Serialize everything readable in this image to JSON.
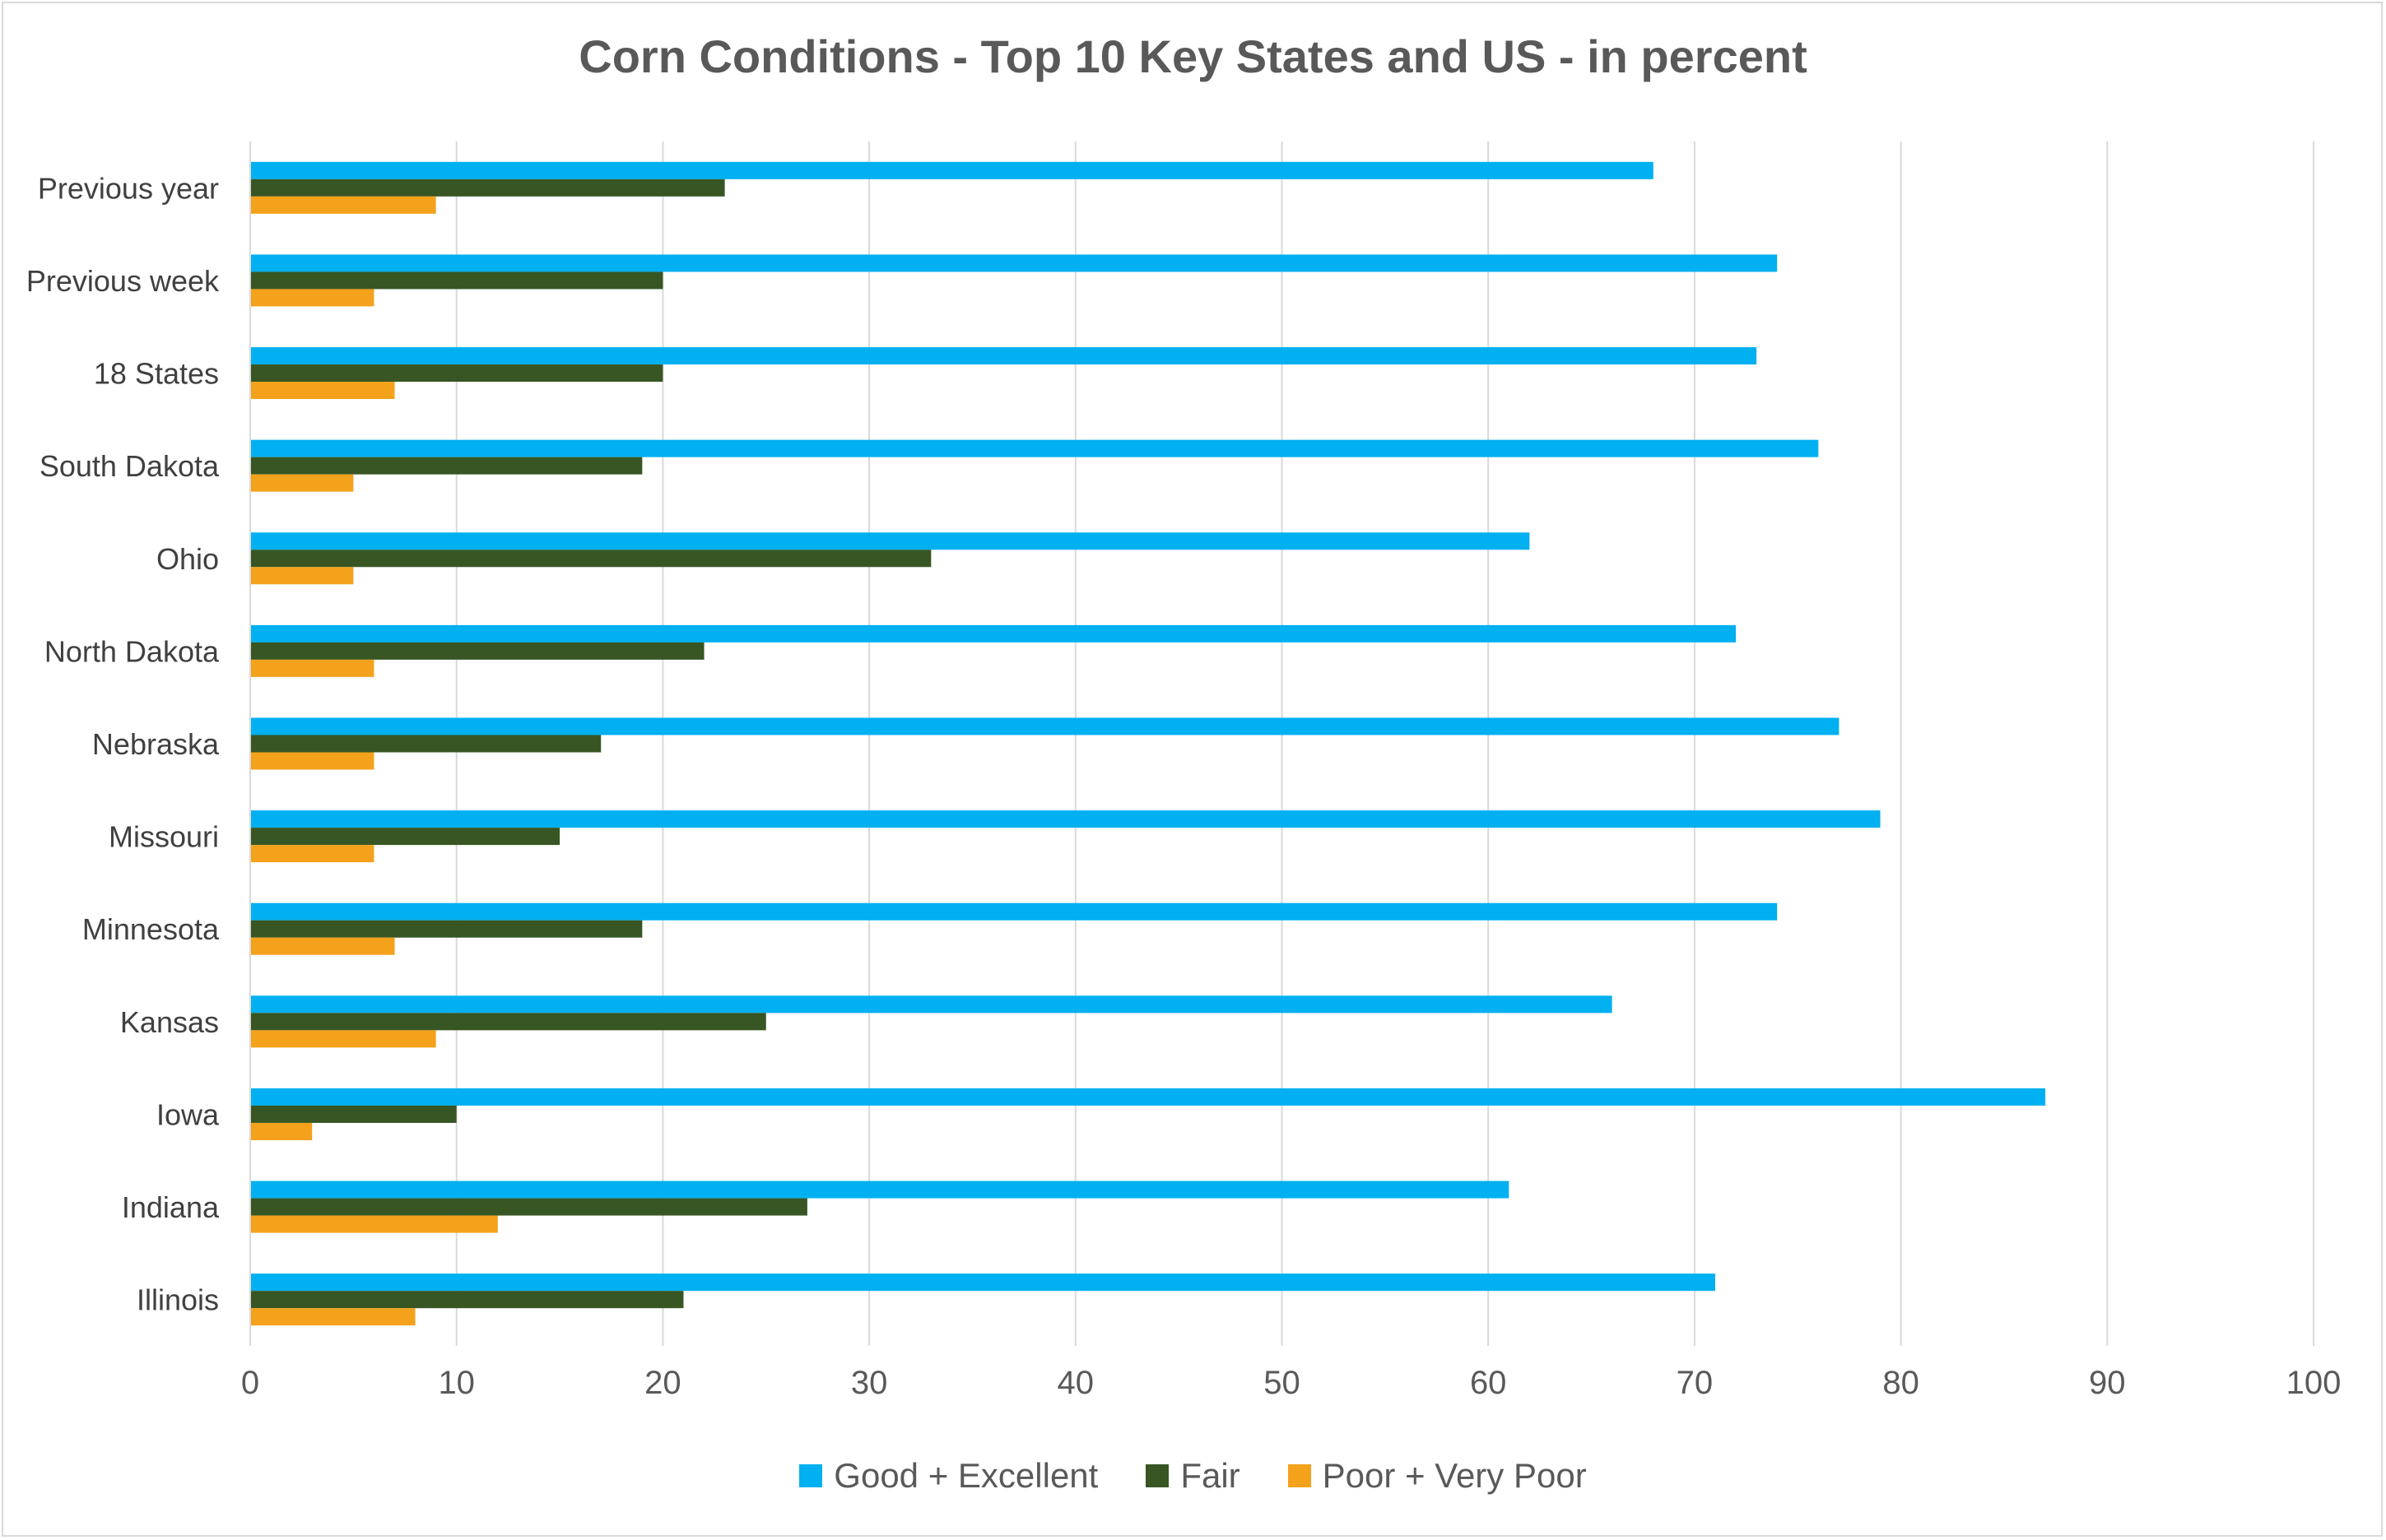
{
  "chart_data": {
    "type": "bar",
    "orientation": "horizontal",
    "title": "Corn Conditions - Top 10 Key States and US - in percent",
    "xlabel": "",
    "ylabel": "",
    "xlim": [
      0,
      100
    ],
    "x_ticks": [
      "0",
      "10",
      "20",
      "30",
      "40",
      "50",
      "60",
      "70",
      "80",
      "90",
      "100"
    ],
    "grid": "vertical",
    "legend_position": "bottom",
    "categories": [
      "Previous year",
      "Previous week",
      "18 States",
      "South Dakota",
      "Ohio",
      "North Dakota",
      "Nebraska",
      "Missouri",
      "Minnesota",
      "Kansas",
      "Iowa",
      "Indiana",
      "Illinois"
    ],
    "series": [
      {
        "name": "Good + Excellent",
        "color": "#00b0f0",
        "values": [
          68,
          74,
          73,
          76,
          62,
          72,
          77,
          79,
          74,
          66,
          87,
          61,
          71
        ]
      },
      {
        "name": "Fair",
        "color": "#375623",
        "values": [
          23,
          20,
          20,
          19,
          33,
          22,
          17,
          15,
          19,
          25,
          10,
          27,
          21
        ]
      },
      {
        "name": "Poor + Very Poor",
        "color": "#f4a11b",
        "values": [
          9,
          6,
          7,
          5,
          5,
          6,
          6,
          6,
          7,
          9,
          3,
          12,
          8
        ]
      }
    ]
  }
}
